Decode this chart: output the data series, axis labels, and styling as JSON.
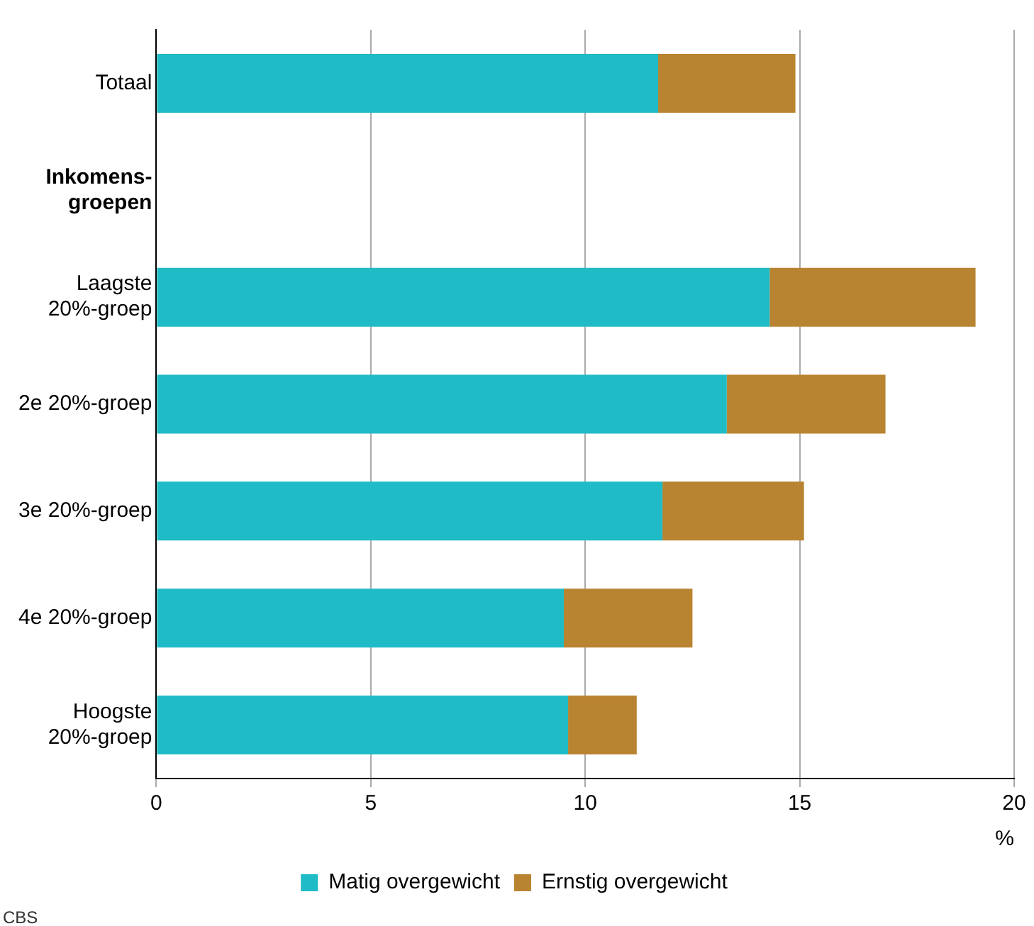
{
  "chart_data": {
    "type": "bar",
    "orientation": "horizontal",
    "stacked": true,
    "categories": [
      "Totaal",
      "Inkomens-\ngroepen",
      "Laagste\n20%-groep",
      "2e 20%-groep",
      "3e 20%-groep",
      "4e 20%-groep",
      "Hoogste\n20%-groep"
    ],
    "series": [
      {
        "name": "Matig overgewicht",
        "color": "#1fbbc6",
        "values": [
          11.7,
          null,
          14.3,
          13.3,
          11.8,
          9.5,
          9.6
        ]
      },
      {
        "name": "Ernstig overgewicht",
        "color": "#b98431",
        "values": [
          3.2,
          null,
          4.8,
          3.7,
          3.3,
          3.0,
          1.6
        ]
      }
    ],
    "xlim": [
      0,
      20
    ],
    "xticks": [
      0,
      5,
      10,
      15,
      20
    ],
    "xlabel": "%",
    "grid": "x",
    "legend": "bottom",
    "annotations": [
      "CBS"
    ]
  }
}
